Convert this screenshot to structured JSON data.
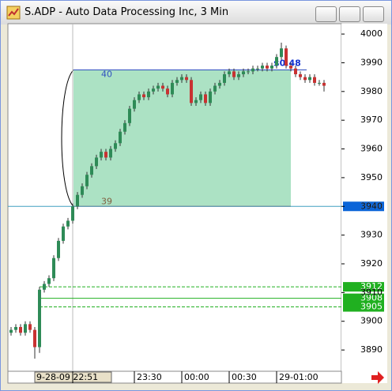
{
  "chart_data": {
    "type": "candlestick",
    "title": "S.ADP - Auto Data Processing Inc, 3 Min",
    "categories": [
      null,
      null,
      null,
      null,
      null,
      null,
      null,
      null,
      null,
      null,
      null,
      null,
      null,
      "9-28-09 22:51",
      null,
      null,
      null,
      null,
      null,
      null,
      null,
      null,
      null,
      null,
      null,
      null,
      "23:30",
      null,
      null,
      null,
      null,
      null,
      null,
      null,
      null,
      null,
      "00:00",
      null,
      null,
      null,
      null,
      null,
      null,
      null,
      null,
      null,
      "00:30",
      null,
      null,
      null,
      null,
      null,
      null,
      null,
      null,
      null,
      "29-01:00",
      null,
      null,
      null,
      null,
      null,
      null,
      null,
      null,
      null,
      null
    ],
    "open": [
      3896,
      3897,
      3898,
      3896,
      3899,
      3897,
      3891,
      3911,
      3913,
      3915,
      3922,
      3928,
      3933,
      3935,
      3940,
      3944,
      3947,
      3951,
      3954,
      3957,
      3959,
      3957,
      3960,
      3962,
      3966,
      3969,
      3974,
      3977,
      3979,
      3978,
      3980,
      3981,
      3982,
      3981,
      3979,
      3983,
      3984,
      3985,
      3984,
      3976,
      3977,
      3979,
      3976,
      3980,
      3982,
      3983,
      3986,
      3987,
      3985,
      3986,
      3987,
      3987,
      3988,
      3988,
      3989,
      3988,
      3989,
      3992,
      3995,
      3989,
      3988,
      3986,
      3985,
      3984,
      3985,
      3983,
      3983
    ],
    "high": [
      3898,
      3899,
      3899,
      3900,
      3900,
      3898,
      3912,
      3914,
      3916,
      3923,
      3929,
      3934,
      3936,
      3941,
      3945,
      3948,
      3952,
      3955,
      3958,
      3960,
      3960,
      3961,
      3963,
      3967,
      3970,
      3975,
      3978,
      3980,
      3980,
      3981,
      3982,
      3983,
      3983,
      3982,
      3984,
      3985,
      3986,
      3986,
      3985,
      3978,
      3980,
      3980,
      3981,
      3983,
      3984,
      3987,
      3988,
      3988,
      3987,
      3988,
      3988,
      3989,
      3989,
      3990,
      3990,
      3990,
      3993,
      3997,
      3996,
      3990,
      3989,
      3987,
      3986,
      3986,
      3986,
      3984,
      3984
    ],
    "low": [
      3895,
      3896,
      3895,
      3895,
      3896,
      3887,
      3889,
      3910,
      3912,
      3914,
      3921,
      3927,
      3932,
      3934,
      3939,
      3943,
      3946,
      3950,
      3953,
      3956,
      3956,
      3956,
      3959,
      3961,
      3965,
      3968,
      3973,
      3976,
      3977,
      3977,
      3979,
      3980,
      3980,
      3978,
      3978,
      3982,
      3983,
      3983,
      3975,
      3975,
      3976,
      3975,
      3975,
      3979,
      3981,
      3982,
      3985,
      3984,
      3984,
      3985,
      3986,
      3986,
      3987,
      3987,
      3987,
      3987,
      3988,
      3991,
      3988,
      3987,
      3985,
      3984,
      3983,
      3983,
      3982,
      3982,
      3980
    ],
    "close": [
      3897,
      3898,
      3896,
      3899,
      3897,
      3891,
      3911,
      3913,
      3915,
      3922,
      3928,
      3933,
      3935,
      3940,
      3944,
      3947,
      3951,
      3954,
      3957,
      3959,
      3957,
      3960,
      3962,
      3966,
      3969,
      3974,
      3977,
      3979,
      3978,
      3980,
      3981,
      3982,
      3981,
      3979,
      3983,
      3984,
      3985,
      3984,
      3976,
      3977,
      3979,
      3976,
      3980,
      3982,
      3983,
      3986,
      3987,
      3985,
      3986,
      3987,
      3987,
      3988,
      3988,
      3989,
      3988,
      3989,
      3992,
      3995,
      3989,
      3988,
      3986,
      3985,
      3984,
      3985,
      3983,
      3983,
      3982
    ],
    "up_color": "#2e8b57",
    "down_color": "#c83232",
    "ylim": [
      3882.6,
      4003.6
    ],
    "yticks": [
      3890,
      3900,
      3910,
      3920,
      3930,
      3940,
      3950,
      3960,
      3970,
      3980,
      3990,
      4000
    ],
    "price_lines": [
      3940,
      3912,
      3908,
      3905
    ],
    "price_line_colors": [
      "#0a64d8",
      "#20b020",
      "#20b020",
      "#20b020"
    ],
    "range_box": {
      "top": 3987.5,
      "bottom": 3940,
      "color": "#7fd3a5"
    },
    "annotations": [
      "40",
      "39",
      "$0.48"
    ]
  }
}
